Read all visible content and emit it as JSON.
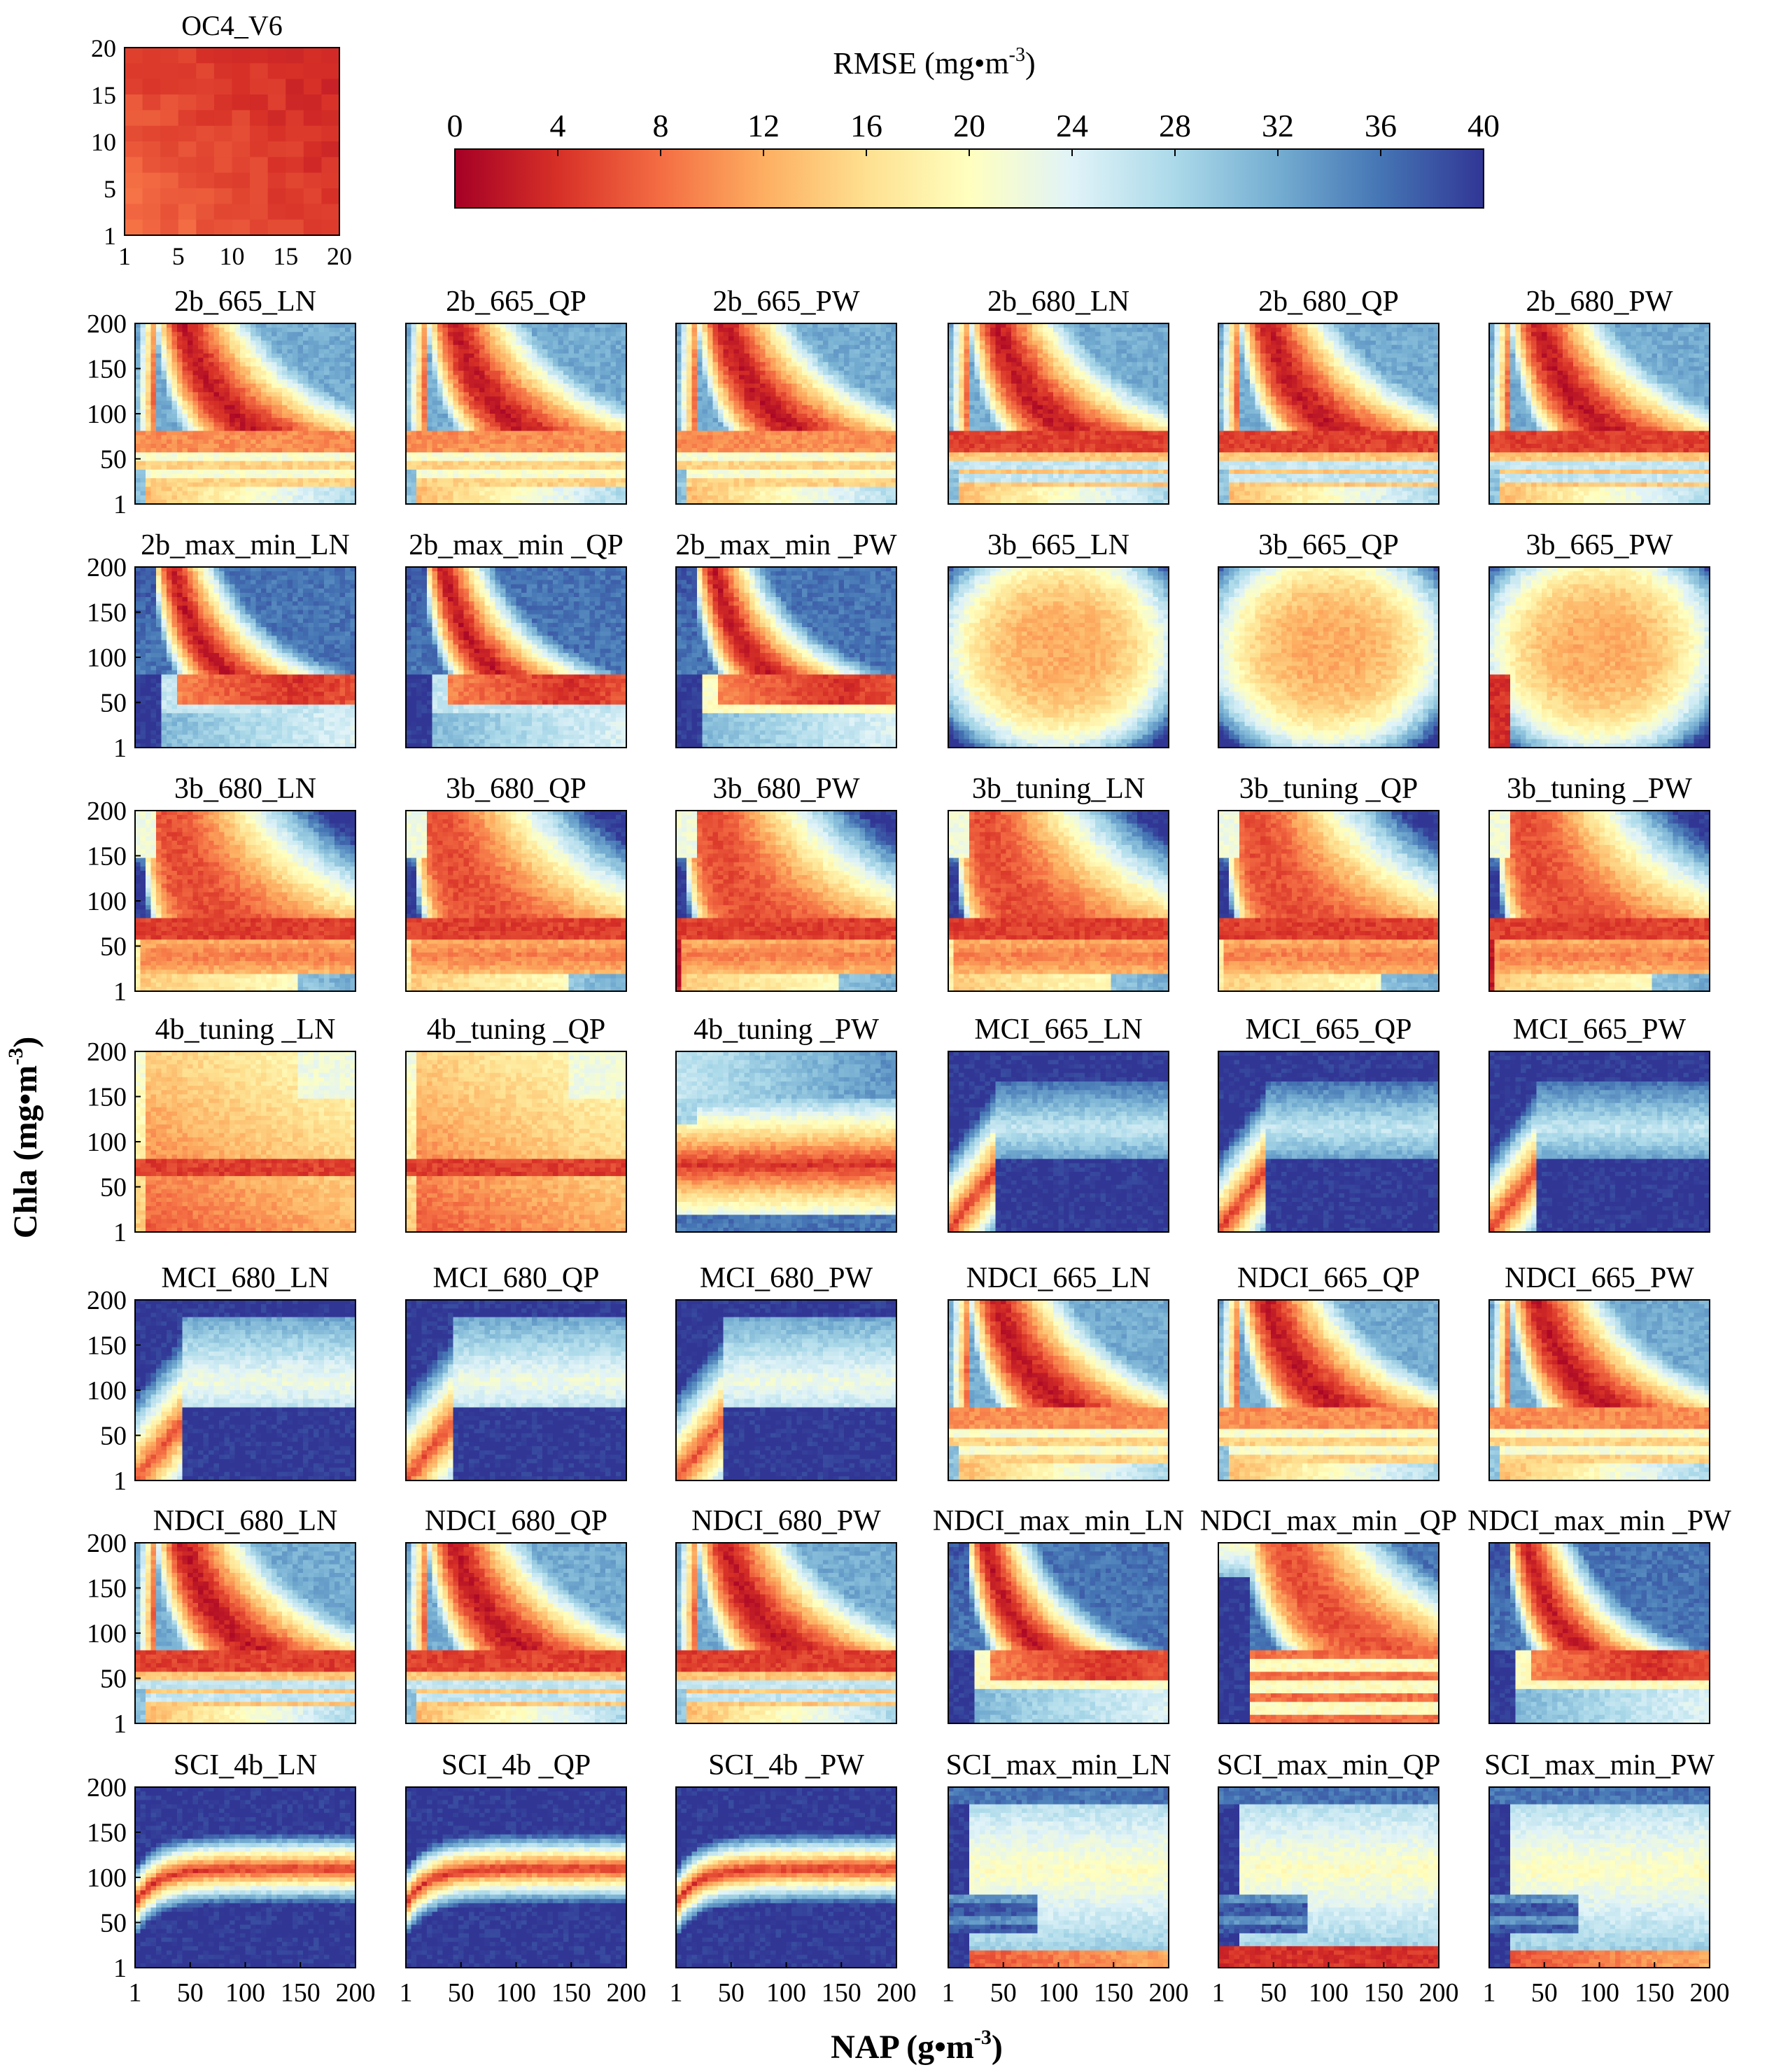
{
  "chart_data": {
    "type": "heatmap",
    "colorbar": {
      "title": "RMSE (mg•m",
      "title_sup": "-3",
      "title_end": ")",
      "ticks": [
        "0",
        "4",
        "8",
        "12",
        "16",
        "20",
        "24",
        "28",
        "32",
        "36",
        "40"
      ],
      "range": [
        0,
        40
      ],
      "colormap": [
        "#a50026",
        "#d73027",
        "#f46d43",
        "#fdae61",
        "#fee090",
        "#ffffbf",
        "#e0f3f8",
        "#abd9e9",
        "#74add1",
        "#4575b4",
        "#313695"
      ]
    },
    "xlabel": "NAP (g•m",
    "xlabel_sup": "-3",
    "xlabel_end": ")",
    "ylabel": "Chla (mg•m",
    "ylabel_sup": "-3",
    "ylabel_end": ")",
    "x_ticks": [
      "1",
      "50",
      "100",
      "150",
      "200"
    ],
    "y_ticks": [
      "200",
      "150",
      "100",
      "50",
      "1"
    ],
    "inset": {
      "title": "OC4_V6",
      "x_ticks": [
        "1",
        "5",
        "10",
        "15",
        "20"
      ],
      "y_ticks": [
        "20",
        "15",
        "10",
        "5",
        "1"
      ],
      "xlim": [
        1,
        20
      ],
      "ylim": [
        1,
        20
      ],
      "rmse_range": [
        3,
        9
      ]
    },
    "xlim": [
      1,
      200
    ],
    "ylim": [
      1,
      200
    ],
    "panels": [
      {
        "title": "2b_665_LN",
        "pattern": "twob",
        "variant": "665"
      },
      {
        "title": "2b_665_QP",
        "pattern": "twob",
        "variant": "665"
      },
      {
        "title": "2b_665_PW",
        "pattern": "twob",
        "variant": "665"
      },
      {
        "title": "2b_680_LN",
        "pattern": "twob",
        "variant": "680"
      },
      {
        "title": "2b_680_QP",
        "pattern": "twob",
        "variant": "680"
      },
      {
        "title": "2b_680_PW",
        "pattern": "twob",
        "variant": "680"
      },
      {
        "title": "2b_max_min_LN",
        "pattern": "twobmax",
        "variant": "a"
      },
      {
        "title": "2b_max_min _QP",
        "pattern": "twobmax",
        "variant": "a"
      },
      {
        "title": "2b_max_min _PW",
        "pattern": "twobmax",
        "variant": "b"
      },
      {
        "title": "3b_665_LN",
        "pattern": "threeb665",
        "variant": "a"
      },
      {
        "title": "3b_665_QP",
        "pattern": "threeb665",
        "variant": "a"
      },
      {
        "title": "3b_665_PW",
        "pattern": "threeb665",
        "variant": "b"
      },
      {
        "title": "3b_680_LN",
        "pattern": "threeb680",
        "variant": "a"
      },
      {
        "title": "3b_680_QP",
        "pattern": "threeb680",
        "variant": "a"
      },
      {
        "title": "3b_680_PW",
        "pattern": "threeb680",
        "variant": "b"
      },
      {
        "title": "3b_tuning_LN",
        "pattern": "threeb680",
        "variant": "a"
      },
      {
        "title": "3b_tuning _QP",
        "pattern": "threeb680",
        "variant": "a"
      },
      {
        "title": "3b_tuning _PW",
        "pattern": "threeb680",
        "variant": "b"
      },
      {
        "title": "4b_tuning _LN",
        "pattern": "fourb",
        "variant": "a"
      },
      {
        "title": "4b_tuning _QP",
        "pattern": "fourb",
        "variant": "a"
      },
      {
        "title": "4b_tuning _PW",
        "pattern": "fourbpw",
        "variant": "a"
      },
      {
        "title": "MCI_665_LN",
        "pattern": "mci665",
        "variant": "a"
      },
      {
        "title": "MCI_665_QP",
        "pattern": "mci665",
        "variant": "a"
      },
      {
        "title": "MCI_665_PW",
        "pattern": "mci665",
        "variant": "a"
      },
      {
        "title": "MCI_680_LN",
        "pattern": "mci680",
        "variant": "a"
      },
      {
        "title": "MCI_680_QP",
        "pattern": "mci680",
        "variant": "a"
      },
      {
        "title": "MCI_680_PW",
        "pattern": "mci680",
        "variant": "a"
      },
      {
        "title": "NDCI_665_LN",
        "pattern": "twob",
        "variant": "665"
      },
      {
        "title": "NDCI_665_QP",
        "pattern": "twob",
        "variant": "665"
      },
      {
        "title": "NDCI_665_PW",
        "pattern": "twob",
        "variant": "665"
      },
      {
        "title": "NDCI_680_LN",
        "pattern": "twob",
        "variant": "680"
      },
      {
        "title": "NDCI_680_QP",
        "pattern": "twob",
        "variant": "680"
      },
      {
        "title": "NDCI_680_PW",
        "pattern": "twob",
        "variant": "680"
      },
      {
        "title": "NDCI_max_min_LN",
        "pattern": "twobmax",
        "variant": "b"
      },
      {
        "title": "NDCI_max_min _QP",
        "pattern": "ndciqp",
        "variant": "a"
      },
      {
        "title": "NDCI_max_min _PW",
        "pattern": "twobmax",
        "variant": "b"
      },
      {
        "title": "SCI_4b_LN",
        "pattern": "sci4b",
        "variant": "a"
      },
      {
        "title": "SCI_4b _QP",
        "pattern": "sci4b",
        "variant": "a"
      },
      {
        "title": "SCI_4b _PW",
        "pattern": "sci4b",
        "variant": "a"
      },
      {
        "title": "SCI_max_min_LN",
        "pattern": "scimax",
        "variant": "a"
      },
      {
        "title": "SCI_max_min_QP",
        "pattern": "scimax",
        "variant": "b"
      },
      {
        "title": "SCI_max_min_PW",
        "pattern": "scimax",
        "variant": "a"
      }
    ]
  }
}
